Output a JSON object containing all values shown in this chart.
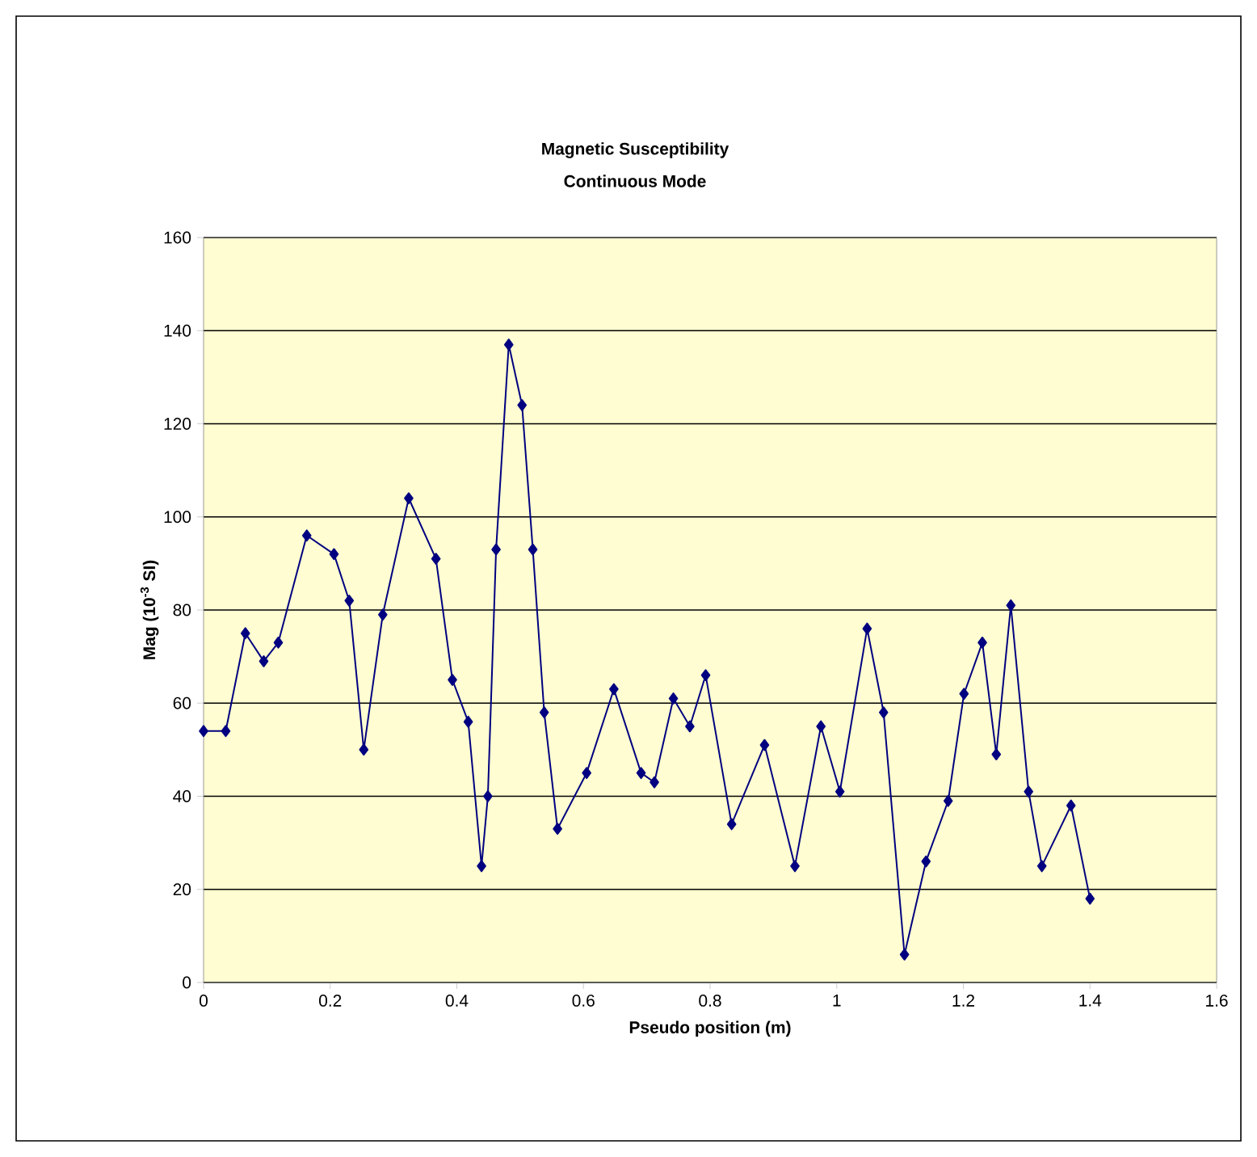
{
  "chart_data": {
    "type": "line",
    "title": "Magnetic Susceptibility",
    "subtitle": "Continuous Mode",
    "xlabel": "Pseudo position (m)",
    "ylabel": "Mag (10$^{-3}$ SI)",
    "x": [
      0,
      0.035,
      0.066,
      0.095,
      0.118,
      0.163,
      0.206,
      0.23,
      0.253,
      0.283,
      0.324,
      0.367,
      0.393,
      0.418,
      0.439,
      0.449,
      0.462,
      0.482,
      0.503,
      0.52,
      0.538,
      0.559,
      0.605,
      0.648,
      0.691,
      0.712,
      0.742,
      0.768,
      0.793,
      0.834,
      0.886,
      0.934,
      0.975,
      1.005,
      1.048,
      1.074,
      1.107,
      1.141,
      1.176,
      1.201,
      1.23,
      1.252,
      1.275,
      1.303,
      1.324,
      1.37,
      1.4
    ],
    "series": [
      {
        "color": "#000080",
        "values": [
          54,
          54,
          75,
          69,
          73,
          96,
          92,
          82,
          50,
          79,
          104,
          91,
          65,
          56,
          25,
          40,
          93,
          137,
          124,
          93,
          58,
          33,
          45,
          63,
          45,
          43,
          61,
          55,
          66,
          34,
          51,
          25,
          55,
          41,
          76,
          58,
          6,
          26,
          39,
          62,
          73,
          49,
          81,
          41,
          25,
          38,
          18
        ]
      }
    ],
    "xlim": [
      0,
      1.6
    ],
    "xticks": [
      0,
      0.2,
      0.4,
      0.6,
      0.8,
      1,
      1.2,
      1.4,
      1.6
    ],
    "ylim": [
      0,
      160
    ],
    "yticks": [
      0,
      20,
      40,
      60,
      80,
      100,
      120,
      140,
      160
    ],
    "grid": "y",
    "marker": "diamond",
    "line_style": "solid"
  }
}
